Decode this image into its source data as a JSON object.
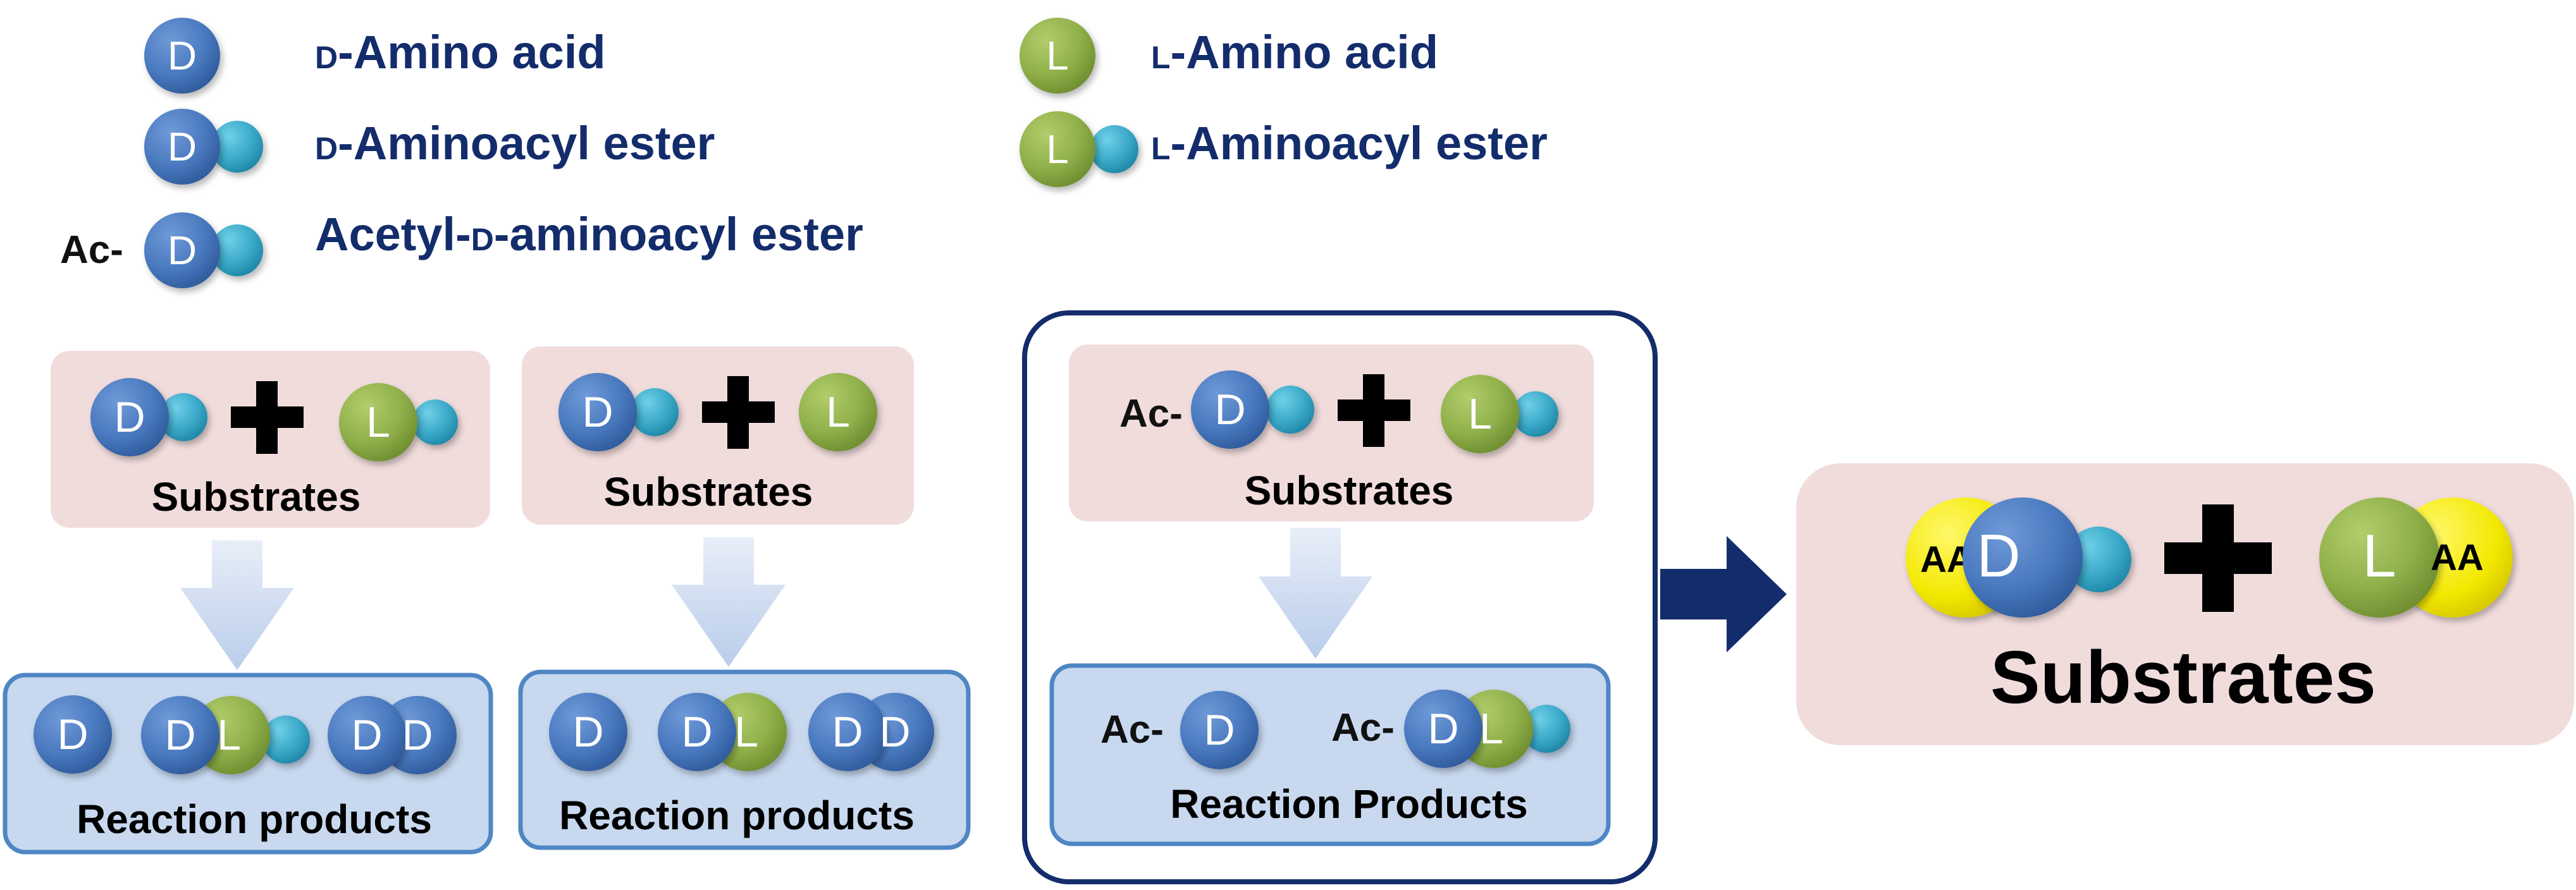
{
  "legend": {
    "items": [
      {
        "glyph": "D",
        "text_prefix": "D",
        "text_main": "-Amino acid"
      },
      {
        "glyph": "D",
        "text_prefix": "D",
        "text_main": "-Aminoacyl ester"
      },
      {
        "glyph": "D",
        "ac": "Ac-",
        "text_main_1": "Acetyl-",
        "text_prefix": "D",
        "text_main_2": "-aminoacyl ester"
      },
      {
        "glyph": "L",
        "text_prefix": "L",
        "text_main": "-Amino acid"
      },
      {
        "glyph": "L",
        "text_prefix": "L",
        "text_main": "-Aminoacyl ester"
      }
    ]
  },
  "panels": [
    {
      "substrates_label": "Substrates",
      "substrate_left": "D",
      "substrate_right": "L",
      "products_label": "Reaction products",
      "products": [
        "D",
        "D",
        "L",
        "D",
        "D"
      ]
    },
    {
      "substrates_label": "Substrates",
      "substrate_left": "D",
      "substrate_right": "L",
      "products_label": "Reaction products",
      "products": [
        "D",
        "D",
        "L",
        "D",
        "D"
      ]
    },
    {
      "ac": "Ac-",
      "substrates_label": "Substrates",
      "substrate_left": "D",
      "substrate_right": "L",
      "products_label": "Reaction Products",
      "products_ac_1": "Ac-",
      "products_ac_2": "Ac-",
      "products": [
        "D",
        "D",
        "L"
      ]
    }
  ],
  "result": {
    "left_tag": "AA",
    "left_glyph": "D",
    "right_glyph": "L",
    "right_tag": "AA",
    "label": "Substrates"
  },
  "colors": {
    "d_blue": "#4a79bf",
    "l_green": "#8fb04a",
    "ester_cyan": "#3aa9c8",
    "aa_yellow": "#f3e800",
    "navy": "#132c6b",
    "pink_box": "#f1dcdc",
    "blue_box": "#c7d8ef",
    "blue_box_border": "#4f86c4",
    "arrow_light": "#c8d7ef"
  }
}
